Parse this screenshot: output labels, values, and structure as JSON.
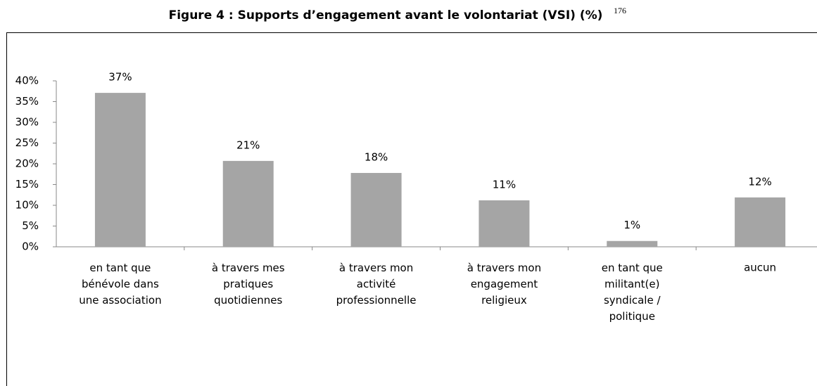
{
  "chart_data": {
    "type": "bar",
    "title": "Figure 4 : Supports d’engagement avant le volontariat (VSI) (%)",
    "title_footnote": "176",
    "categories": [
      "en tant que\nbénévole dans\nune association",
      "à travers mes\npratiques\nquotidiennes",
      "à travers mon\nactivité\nprofessionnelle",
      "à travers mon\nengagement\nreligieux",
      "en tant que\nmilitant(e)\nsyndicale /\npolitique",
      "aucun"
    ],
    "values": [
      37.1,
      20.7,
      17.8,
      11.2,
      1.4,
      11.9
    ],
    "value_labels": [
      "37%",
      "21%",
      "18%",
      "11%",
      "1%",
      "12%"
    ],
    "color": "#a5a5a5",
    "ylim": [
      0,
      40
    ],
    "yticks": [
      {
        "value": 0,
        "label": "0%"
      },
      {
        "value": 5,
        "label": "5%"
      },
      {
        "value": 10,
        "label": "10%"
      },
      {
        "value": 15,
        "label": "15%"
      },
      {
        "value": 20,
        "label": "20%"
      },
      {
        "value": 25,
        "label": "25%"
      },
      {
        "value": 30,
        "label": "30%"
      },
      {
        "value": 35,
        "label": "35%"
      },
      {
        "value": 40,
        "label": "40%"
      }
    ],
    "grid": false
  }
}
